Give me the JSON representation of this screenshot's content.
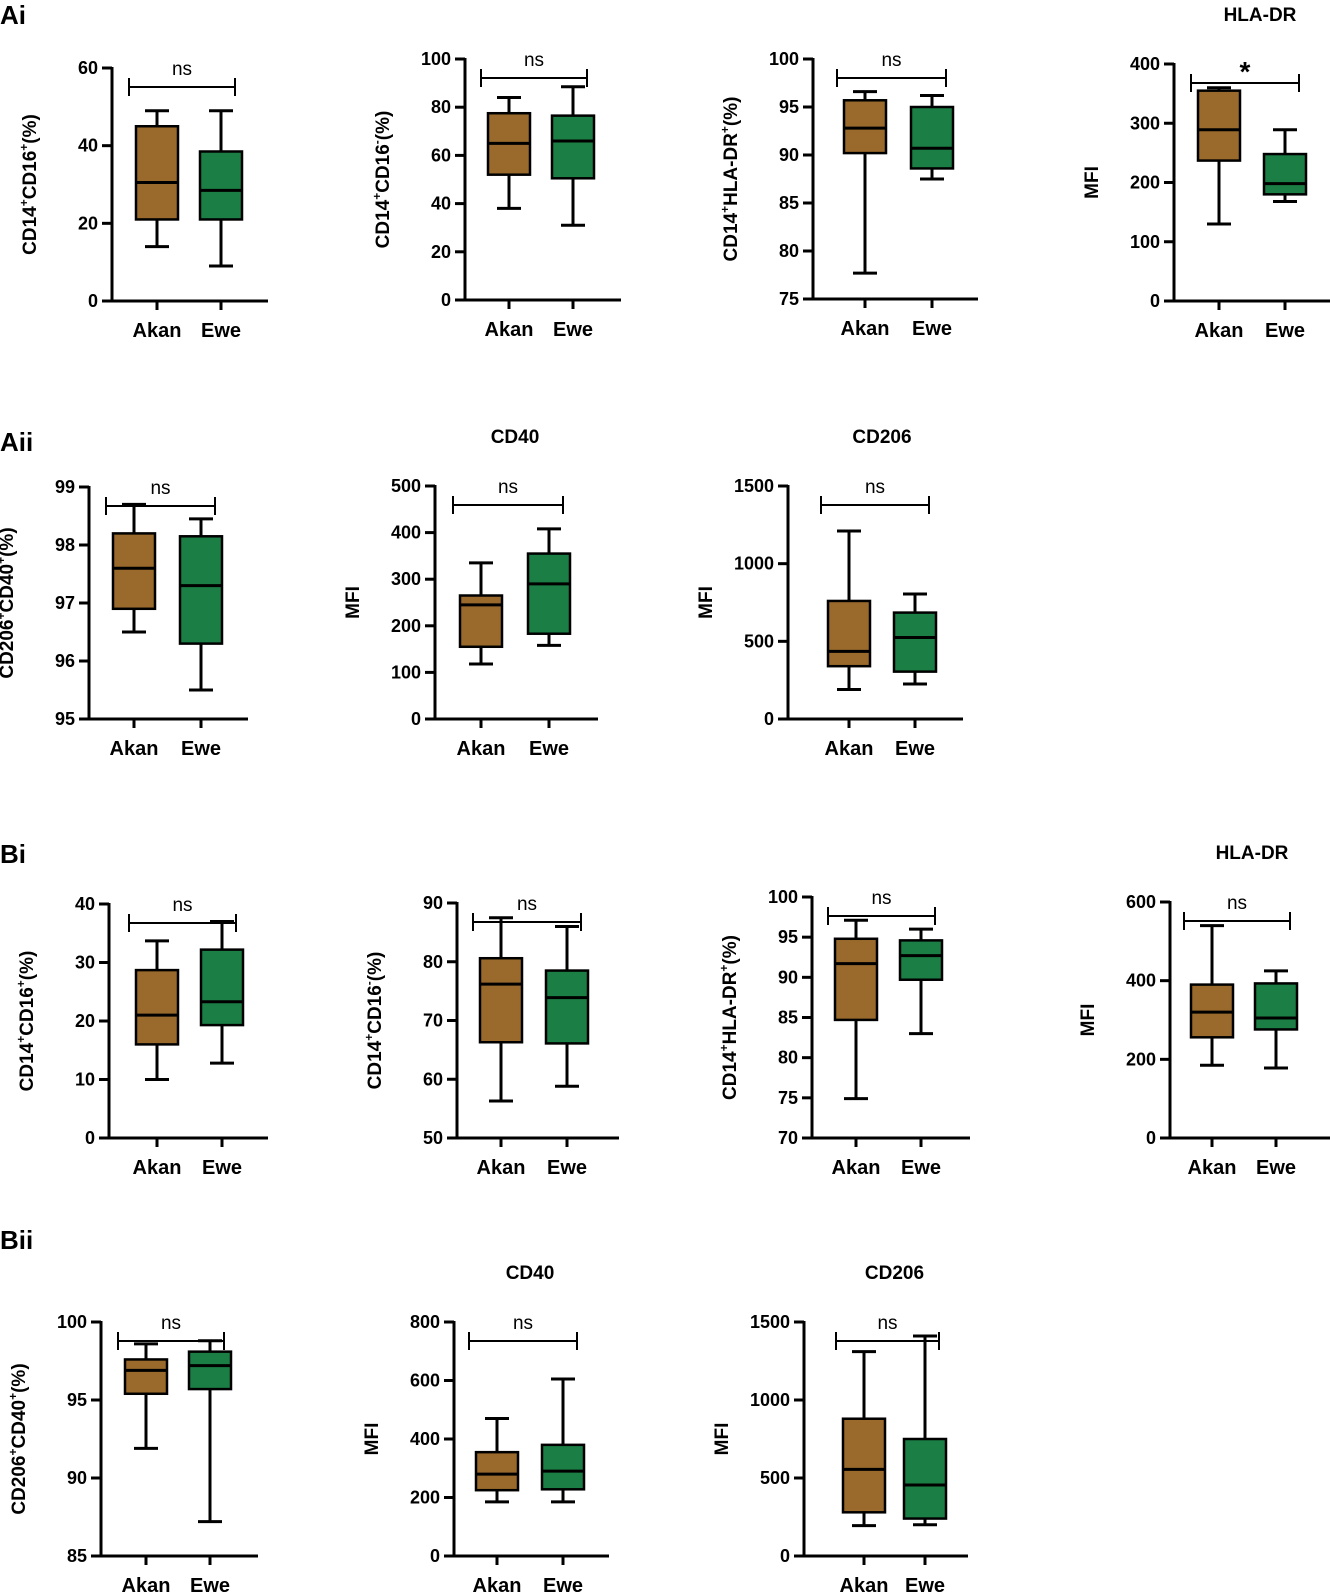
{
  "colors": {
    "akan": "#9a6a2c",
    "ewe": "#1b7f45",
    "line": "#000000"
  },
  "panel_labels": [
    "Ai",
    "Aii",
    "Bi",
    "Bii"
  ],
  "chart_data": [
    {
      "id": "ai-1",
      "type": "box",
      "title": "",
      "ylabel": [
        [
          "CD14",
          ""
        ],
        [
          "+",
          "sup"
        ],
        [
          "CD16",
          ""
        ],
        [
          "+",
          "sup"
        ],
        [
          "(%)",
          ""
        ]
      ],
      "ylim": [
        0,
        60
      ],
      "yticks": [
        0,
        20,
        40,
        60
      ],
      "categories": [
        "Akan",
        "Ewe"
      ],
      "series": [
        {
          "name": "Akan",
          "min": 14,
          "q1": 21,
          "median": 30.5,
          "q3": 45,
          "max": 49
        },
        {
          "name": "Ewe",
          "min": 9,
          "q1": 21,
          "median": 28.5,
          "q3": 38.5,
          "max": 49
        }
      ],
      "significance": "ns"
    },
    {
      "id": "ai-2",
      "type": "box",
      "title": "",
      "ylabel": [
        [
          "CD14",
          ""
        ],
        [
          "+",
          "sup"
        ],
        [
          "CD16",
          ""
        ],
        [
          "-",
          "sup"
        ],
        [
          "(%)",
          ""
        ]
      ],
      "ylim": [
        0,
        100
      ],
      "yticks": [
        0,
        20,
        40,
        60,
        80,
        100
      ],
      "categories": [
        "Akan",
        "Ewe"
      ],
      "series": [
        {
          "name": "Akan",
          "min": 38,
          "q1": 52,
          "median": 65,
          "q3": 77.5,
          "max": 84
        },
        {
          "name": "Ewe",
          "min": 31,
          "q1": 50.5,
          "median": 66,
          "q3": 76.5,
          "max": 88.5
        }
      ],
      "significance": "ns"
    },
    {
      "id": "ai-3",
      "type": "box",
      "title": "",
      "ylabel": [
        [
          "CD14",
          ""
        ],
        [
          "+",
          "sup"
        ],
        [
          "HLA-DR",
          ""
        ],
        [
          "+",
          "sup"
        ],
        [
          "(%)",
          ""
        ]
      ],
      "ylim": [
        75,
        100
      ],
      "yticks": [
        75,
        80,
        85,
        90,
        95,
        100
      ],
      "categories": [
        "Akan",
        "Ewe"
      ],
      "series": [
        {
          "name": "Akan",
          "min": 77.7,
          "q1": 90.2,
          "median": 92.8,
          "q3": 95.7,
          "max": 96.6
        },
        {
          "name": "Ewe",
          "min": 87.5,
          "q1": 88.6,
          "median": 90.7,
          "q3": 95,
          "max": 96.2
        }
      ],
      "significance": "ns"
    },
    {
      "id": "ai-4",
      "type": "box",
      "title": "HLA-DR",
      "ylabel": [
        [
          "MFI",
          ""
        ]
      ],
      "ylim": [
        0,
        400
      ],
      "yticks": [
        0,
        100,
        200,
        300,
        400
      ],
      "categories": [
        "Akan",
        "Ewe"
      ],
      "series": [
        {
          "name": "Akan",
          "min": 130,
          "q1": 237,
          "median": 289,
          "q3": 355,
          "max": 360
        },
        {
          "name": "Ewe",
          "min": 168,
          "q1": 180,
          "median": 198,
          "q3": 248,
          "max": 289
        }
      ],
      "significance": "*"
    },
    {
      "id": "aii-1",
      "type": "box",
      "title": "",
      "ylabel": [
        [
          "CD206",
          ""
        ],
        [
          "+",
          "sup"
        ],
        [
          "CD40",
          ""
        ],
        [
          "+",
          "sup"
        ],
        [
          "(%)",
          ""
        ]
      ],
      "ylim": [
        95,
        99
      ],
      "yticks": [
        95,
        96,
        97,
        98,
        99
      ],
      "categories": [
        "Akan",
        "Ewe"
      ],
      "series": [
        {
          "name": "Akan",
          "min": 96.5,
          "q1": 96.9,
          "median": 97.6,
          "q3": 98.2,
          "max": 98.7
        },
        {
          "name": "Ewe",
          "min": 95.5,
          "q1": 96.3,
          "median": 97.3,
          "q3": 98.15,
          "max": 98.45
        }
      ],
      "significance": "ns"
    },
    {
      "id": "aii-2",
      "type": "box",
      "title": "CD40",
      "ylabel": [
        [
          "MFI",
          ""
        ]
      ],
      "ylim": [
        0,
        500
      ],
      "yticks": [
        0,
        100,
        200,
        300,
        400,
        500
      ],
      "categories": [
        "Akan",
        "Ewe"
      ],
      "series": [
        {
          "name": "Akan",
          "min": 118,
          "q1": 155,
          "median": 245,
          "q3": 265,
          "max": 335
        },
        {
          "name": "Ewe",
          "min": 158,
          "q1": 183,
          "median": 290,
          "q3": 355,
          "max": 408
        }
      ],
      "significance": "ns"
    },
    {
      "id": "aii-3",
      "type": "box",
      "title": "CD206",
      "ylabel": [
        [
          "MFI",
          ""
        ]
      ],
      "ylim": [
        0,
        1500
      ],
      "yticks": [
        0,
        500,
        1000,
        1500
      ],
      "categories": [
        "Akan",
        "Ewe"
      ],
      "series": [
        {
          "name": "Akan",
          "min": 190,
          "q1": 340,
          "median": 435,
          "q3": 760,
          "max": 1210
        },
        {
          "name": "Ewe",
          "min": 225,
          "q1": 305,
          "median": 525,
          "q3": 685,
          "max": 805
        }
      ],
      "significance": "ns"
    },
    {
      "id": "bi-1",
      "type": "box",
      "title": "",
      "ylabel": [
        [
          "CD14",
          ""
        ],
        [
          "+",
          "sup"
        ],
        [
          "CD16",
          ""
        ],
        [
          "+",
          "sup"
        ],
        [
          "(%)",
          ""
        ]
      ],
      "ylim": [
        0,
        40
      ],
      "yticks": [
        0,
        10,
        20,
        30,
        40
      ],
      "categories": [
        "Akan",
        "Ewe"
      ],
      "series": [
        {
          "name": "Akan",
          "min": 10,
          "q1": 16,
          "median": 21,
          "q3": 28.7,
          "max": 33.7
        },
        {
          "name": "Ewe",
          "min": 12.8,
          "q1": 19.3,
          "median": 23.3,
          "q3": 32.2,
          "max": 37
        }
      ],
      "significance": "ns"
    },
    {
      "id": "bi-2",
      "type": "box",
      "title": "",
      "ylabel": [
        [
          "CD14",
          ""
        ],
        [
          "+",
          "sup"
        ],
        [
          "CD16",
          ""
        ],
        [
          "-",
          "sup"
        ],
        [
          "(%)",
          ""
        ]
      ],
      "ylim": [
        50,
        90
      ],
      "yticks": [
        50,
        60,
        70,
        80,
        90
      ],
      "categories": [
        "Akan",
        "Ewe"
      ],
      "series": [
        {
          "name": "Akan",
          "min": 56.3,
          "q1": 66.3,
          "median": 76.2,
          "q3": 80.6,
          "max": 87.5
        },
        {
          "name": "Ewe",
          "min": 58.8,
          "q1": 66.1,
          "median": 73.9,
          "q3": 78.5,
          "max": 86
        }
      ],
      "significance": "ns"
    },
    {
      "id": "bi-3",
      "type": "box",
      "title": "",
      "ylabel": [
        [
          "CD14",
          ""
        ],
        [
          "+",
          "sup"
        ],
        [
          "HLA-DR",
          ""
        ],
        [
          "+",
          "sup"
        ],
        [
          "(%)",
          ""
        ]
      ],
      "ylim": [
        70,
        100
      ],
      "yticks": [
        70,
        75,
        80,
        85,
        90,
        95,
        100
      ],
      "categories": [
        "Akan",
        "Ewe"
      ],
      "series": [
        {
          "name": "Akan",
          "min": 74.9,
          "q1": 84.7,
          "median": 91.7,
          "q3": 94.8,
          "max": 97.1
        },
        {
          "name": "Ewe",
          "min": 83,
          "q1": 89.7,
          "median": 92.7,
          "q3": 94.6,
          "max": 96
        }
      ],
      "significance": "ns"
    },
    {
      "id": "bi-4",
      "type": "box",
      "title": "HLA-DR",
      "ylabel": [
        [
          "MFI",
          ""
        ]
      ],
      "ylim": [
        0,
        600
      ],
      "yticks": [
        0,
        200,
        400,
        600
      ],
      "categories": [
        "Akan",
        "Ewe"
      ],
      "series": [
        {
          "name": "Akan",
          "min": 185,
          "q1": 256,
          "median": 320,
          "q3": 390,
          "max": 540
        },
        {
          "name": "Ewe",
          "min": 178,
          "q1": 276,
          "median": 305,
          "q3": 393,
          "max": 425
        }
      ],
      "significance": "ns"
    },
    {
      "id": "bii-1",
      "type": "box",
      "title": "",
      "ylabel": [
        [
          "CD206",
          ""
        ],
        [
          "+",
          "sup"
        ],
        [
          "CD40",
          ""
        ],
        [
          "+",
          "sup"
        ],
        [
          "(%)",
          ""
        ]
      ],
      "ylim": [
        85,
        100
      ],
      "yticks": [
        85,
        90,
        95,
        100
      ],
      "categories": [
        "Akan",
        "Ewe"
      ],
      "series": [
        {
          "name": "Akan",
          "min": 91.9,
          "q1": 95.4,
          "median": 96.9,
          "q3": 97.6,
          "max": 98.6
        },
        {
          "name": "Ewe",
          "min": 87.2,
          "q1": 95.7,
          "median": 97.2,
          "q3": 98.1,
          "max": 98.8
        }
      ],
      "significance": "ns"
    },
    {
      "id": "bii-2",
      "type": "box",
      "title": "CD40",
      "ylabel": [
        [
          "MFI",
          ""
        ]
      ],
      "ylim": [
        0,
        800
      ],
      "yticks": [
        0,
        200,
        400,
        600,
        800
      ],
      "categories": [
        "Akan",
        "Ewe"
      ],
      "series": [
        {
          "name": "Akan",
          "min": 185,
          "q1": 225,
          "median": 280,
          "q3": 355,
          "max": 470
        },
        {
          "name": "Ewe",
          "min": 185,
          "q1": 228,
          "median": 290,
          "q3": 380,
          "max": 605
        }
      ],
      "significance": "ns"
    },
    {
      "id": "bii-3",
      "type": "box",
      "title": "CD206",
      "ylabel": [
        [
          "MFI",
          ""
        ]
      ],
      "ylim": [
        0,
        1500
      ],
      "yticks": [
        0,
        500,
        1000,
        1500
      ],
      "categories": [
        "Akan",
        "Ewe"
      ],
      "series": [
        {
          "name": "Akan",
          "min": 195,
          "q1": 280,
          "median": 555,
          "q3": 880,
          "max": 1310
        },
        {
          "name": "Ewe",
          "min": 200,
          "q1": 240,
          "median": 455,
          "q3": 750,
          "max": 1410
        }
      ],
      "significance": "ns"
    }
  ]
}
